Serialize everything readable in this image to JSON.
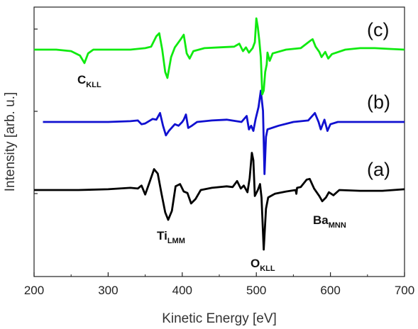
{
  "chart_data": {
    "type": "line",
    "xlabel": "Kinetic Energy [eV]",
    "ylabel": "Intensity [arb. u.]",
    "xlim": [
      200,
      700
    ],
    "x_ticks": [
      "200",
      "300",
      "400",
      "500",
      "600",
      "700"
    ],
    "y_tick_labels": "none",
    "legend": "none",
    "grid": false,
    "series": [
      {
        "name": "(a)",
        "color": "#000000",
        "offset": 0,
        "points": [
          [
            200,
            0
          ],
          [
            260,
            0
          ],
          [
            300,
            1
          ],
          [
            330,
            3
          ],
          [
            340,
            2
          ],
          [
            345,
            6
          ],
          [
            350,
            -6
          ],
          [
            355,
            8
          ],
          [
            362,
            28
          ],
          [
            367,
            22
          ],
          [
            372,
            -5
          ],
          [
            377,
            -30
          ],
          [
            381,
            -40
          ],
          [
            386,
            -28
          ],
          [
            391,
            5
          ],
          [
            397,
            8
          ],
          [
            402,
            -2
          ],
          [
            407,
            -4
          ],
          [
            412,
            -18
          ],
          [
            418,
            -12
          ],
          [
            425,
            0
          ],
          [
            440,
            3
          ],
          [
            460,
            5
          ],
          [
            468,
            4
          ],
          [
            474,
            12
          ],
          [
            479,
            2
          ],
          [
            483,
            6
          ],
          [
            488,
            -3
          ],
          [
            491,
            16
          ],
          [
            494,
            50
          ],
          [
            496,
            40
          ],
          [
            498,
            -8
          ],
          [
            502,
            0
          ],
          [
            505,
            8
          ],
          [
            507,
            -10
          ],
          [
            510,
            -80
          ],
          [
            513,
            -25
          ],
          [
            516,
            -10
          ],
          [
            525,
            -5
          ],
          [
            540,
            -2
          ],
          [
            553,
            0
          ],
          [
            554,
            -5
          ],
          [
            555,
            3
          ],
          [
            560,
            4
          ],
          [
            568,
            14
          ],
          [
            572,
            15
          ],
          [
            578,
            2
          ],
          [
            585,
            -8
          ],
          [
            589,
            -15
          ],
          [
            594,
            -10
          ],
          [
            598,
            -3
          ],
          [
            604,
            -7
          ],
          [
            612,
            0
          ],
          [
            640,
            -1
          ],
          [
            670,
            -1
          ],
          [
            700,
            1
          ]
        ]
      },
      {
        "name": "(b)",
        "color": "#1010d0",
        "offset": 1,
        "points": [
          [
            212,
            0
          ],
          [
            260,
            0
          ],
          [
            300,
            0
          ],
          [
            330,
            1
          ],
          [
            340,
            2
          ],
          [
            345,
            -3
          ],
          [
            350,
            -2
          ],
          [
            360,
            4
          ],
          [
            365,
            3
          ],
          [
            370,
            12
          ],
          [
            374,
            -5
          ],
          [
            378,
            -18
          ],
          [
            382,
            -12
          ],
          [
            390,
            -3
          ],
          [
            395,
            -5
          ],
          [
            400,
            0
          ],
          [
            402,
            3
          ],
          [
            405,
            10
          ],
          [
            408,
            -8
          ],
          [
            413,
            -5
          ],
          [
            420,
            0
          ],
          [
            440,
            2
          ],
          [
            460,
            3
          ],
          [
            480,
            0
          ],
          [
            487,
            8
          ],
          [
            490,
            -10
          ],
          [
            493,
            -5
          ],
          [
            496,
            -12
          ],
          [
            499,
            4
          ],
          [
            503,
            20
          ],
          [
            506,
            42
          ],
          [
            509,
            15
          ],
          [
            511,
            -70
          ],
          [
            513,
            -20
          ],
          [
            515,
            -10
          ],
          [
            530,
            -5
          ],
          [
            550,
            0
          ],
          [
            570,
            2
          ],
          [
            579,
            12
          ],
          [
            584,
            0
          ],
          [
            587,
            -10
          ],
          [
            592,
            3
          ],
          [
            596,
            -12
          ],
          [
            600,
            -3
          ],
          [
            610,
            0
          ],
          [
            640,
            0
          ],
          [
            670,
            0
          ],
          [
            700,
            0
          ]
        ]
      },
      {
        "name": "(c)",
        "color": "#10ea10",
        "offset": 2,
        "points": [
          [
            200,
            0
          ],
          [
            230,
            0
          ],
          [
            250,
            -2
          ],
          [
            262,
            -8
          ],
          [
            268,
            -18
          ],
          [
            273,
            -5
          ],
          [
            280,
            0
          ],
          [
            300,
            0
          ],
          [
            330,
            0
          ],
          [
            350,
            2
          ],
          [
            358,
            4
          ],
          [
            365,
            18
          ],
          [
            369,
            22
          ],
          [
            373,
            0
          ],
          [
            377,
            -30
          ],
          [
            380,
            -38
          ],
          [
            385,
            -10
          ],
          [
            390,
            3
          ],
          [
            398,
            14
          ],
          [
            402,
            20
          ],
          [
            406,
            -5
          ],
          [
            410,
            -12
          ],
          [
            415,
            -2
          ],
          [
            430,
            2
          ],
          [
            450,
            3
          ],
          [
            470,
            4
          ],
          [
            477,
            8
          ],
          [
            482,
            -2
          ],
          [
            486,
            3
          ],
          [
            490,
            -4
          ],
          [
            495,
            2
          ],
          [
            498,
            10
          ],
          [
            500,
            42
          ],
          [
            502,
            30
          ],
          [
            504,
            12
          ],
          [
            506,
            -10
          ],
          [
            508,
            -60
          ],
          [
            510,
            -55
          ],
          [
            512,
            -30
          ],
          [
            514,
            -20
          ],
          [
            515,
            -4
          ],
          [
            518,
            -15
          ],
          [
            522,
            -5
          ],
          [
            540,
            0
          ],
          [
            560,
            2
          ],
          [
            573,
            12
          ],
          [
            576,
            14
          ],
          [
            580,
            4
          ],
          [
            585,
            -3
          ],
          [
            588,
            -10
          ],
          [
            593,
            -3
          ],
          [
            597,
            -12
          ],
          [
            602,
            -6
          ],
          [
            620,
            0
          ],
          [
            640,
            2
          ],
          [
            660,
            2
          ],
          [
            680,
            1
          ],
          [
            700,
            0
          ]
        ]
      }
    ],
    "annotations": [
      {
        "main": "C",
        "sub": "KLL",
        "x": 267
      },
      {
        "main": "Ti",
        "sub": "LMM",
        "x": 384
      },
      {
        "main": "O",
        "sub": "KLL",
        "x": 508
      },
      {
        "main": "Ba",
        "sub": "MNN",
        "x": 592
      }
    ]
  }
}
